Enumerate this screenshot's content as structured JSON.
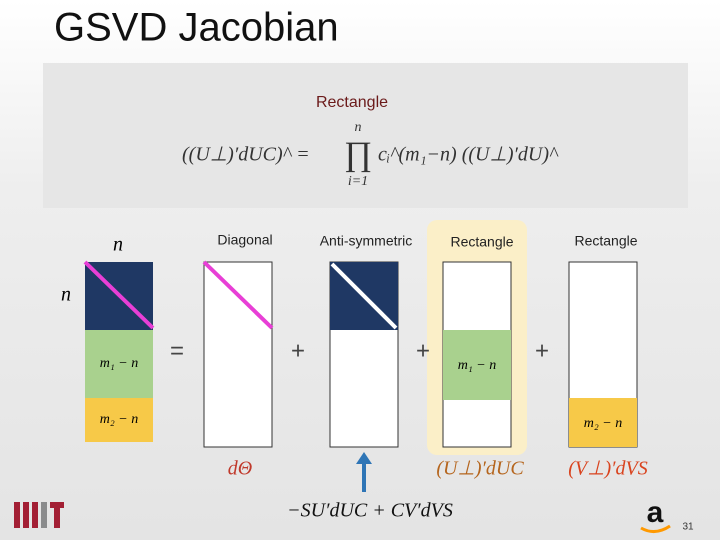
{
  "header": {
    "title": "GSVD Jacobian"
  },
  "box": {
    "label": "Rectangle",
    "formula": {
      "left": "((U⊥)′dUC)^ =",
      "product": "∏",
      "upper": "n",
      "lower": "i=1",
      "right": "cᵢ^(m₁−n) ((U⊥)′dU)^"
    }
  },
  "columns": [
    {
      "label": null
    },
    {
      "label": "Diagonal"
    },
    {
      "label": "Anti-symmetric"
    },
    {
      "label": "Rectangle"
    },
    {
      "label": "Rectangle"
    }
  ],
  "dims": {
    "cols": "n",
    "rows": "n",
    "block1": "m₁ − n",
    "block2": "m₂ − n"
  },
  "operators": {
    "equals": "=",
    "plus": "+"
  },
  "terms": {
    "d_theta": "dΘ",
    "u_term": "(U⊥)′dUC",
    "v_term": "(V⊥)′dVS",
    "anti": "−SU′dUC + CV′dVS"
  },
  "footer": {
    "page": "31"
  }
}
